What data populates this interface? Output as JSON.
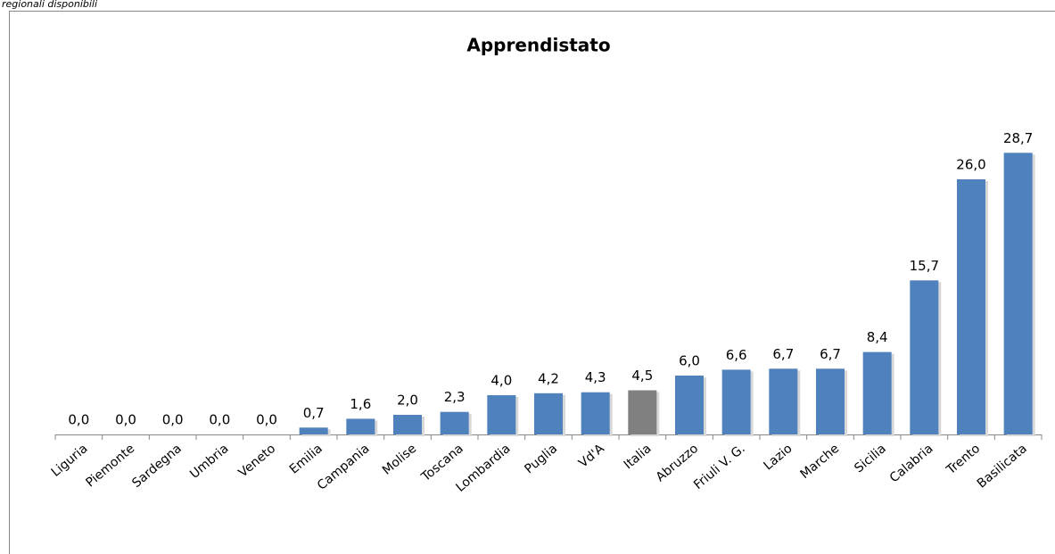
{
  "chart_data": {
    "type": "bar",
    "caption": "regionali disponibili",
    "title": "Apprendistato",
    "categories": [
      "Liguria",
      "Piemonte",
      "Sardegna",
      "Umbria",
      "Veneto",
      "Emilia",
      "Campania",
      "Molise",
      "Toscana",
      "Lombardia",
      "Puglia",
      "Vd'A",
      "Italia",
      "Abruzzo",
      "Friuli V. G.",
      "Lazio",
      "Marche",
      "Sicilia",
      "Calabria",
      "Trento",
      "Basilicata"
    ],
    "values": [
      0,
      0,
      0,
      0,
      0,
      0.7,
      1.6,
      2.0,
      2.3,
      4.0,
      4.2,
      4.3,
      4.5,
      6.0,
      6.6,
      6.7,
      6.7,
      8.4,
      15.7,
      26.0,
      28.7
    ],
    "value_labels": [
      "0,0",
      "0,0",
      "0,0",
      "0,0",
      "0,0",
      "0,7",
      "1,6",
      "2,0",
      "2,3",
      "4,0",
      "4,2",
      "4,3",
      "4,5",
      "6,0",
      "6,6",
      "6,7",
      "6,7",
      "8,4",
      "15,7",
      "26,0",
      "28,7"
    ],
    "colors": [
      "#4f81bd",
      "#4f81bd",
      "#4f81bd",
      "#4f81bd",
      "#4f81bd",
      "#4f81bd",
      "#4f81bd",
      "#4f81bd",
      "#4f81bd",
      "#4f81bd",
      "#4f81bd",
      "#4f81bd",
      "#808080",
      "#4f81bd",
      "#4f81bd",
      "#4f81bd",
      "#4f81bd",
      "#4f81bd",
      "#4f81bd",
      "#4f81bd",
      "#4f81bd"
    ],
    "ylim": [
      0,
      30
    ]
  }
}
